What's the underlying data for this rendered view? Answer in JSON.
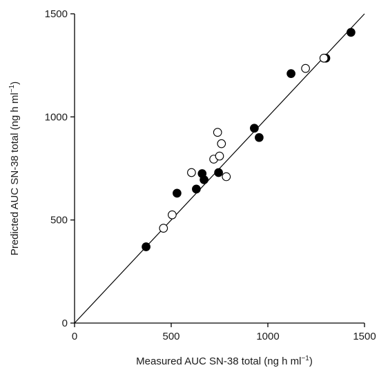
{
  "chart_data": {
    "type": "scatter",
    "xlabel": "Measured AUC SN-38 total (ng h ml",
    "ylabel": "Predicted AUC SN-38 total (ng h ml",
    "label_superscript": "−1",
    "label_close": ")",
    "xlim": [
      0,
      1500
    ],
    "ylim": [
      0,
      1500
    ],
    "xticks": [
      0,
      500,
      1000,
      1500
    ],
    "yticks": [
      0,
      500,
      1000,
      1500
    ],
    "identity_line": [
      [
        0,
        0
      ],
      [
        1500,
        1500
      ]
    ],
    "grid": false,
    "series": [
      {
        "marker": "filled-circle",
        "color": "#000000",
        "points": [
          [
            370,
            370
          ],
          [
            530,
            630
          ],
          [
            630,
            650
          ],
          [
            660,
            725
          ],
          [
            670,
            695
          ],
          [
            745,
            730
          ],
          [
            930,
            945
          ],
          [
            955,
            900
          ],
          [
            1120,
            1210
          ],
          [
            1300,
            1285
          ],
          [
            1430,
            1410
          ]
        ]
      },
      {
        "marker": "open-circle",
        "color": "#000000",
        "points": [
          [
            460,
            460
          ],
          [
            505,
            525
          ],
          [
            605,
            730
          ],
          [
            720,
            795
          ],
          [
            740,
            925
          ],
          [
            750,
            810
          ],
          [
            760,
            870
          ],
          [
            785,
            710
          ],
          [
            1195,
            1235
          ],
          [
            1290,
            1285
          ]
        ]
      }
    ]
  }
}
